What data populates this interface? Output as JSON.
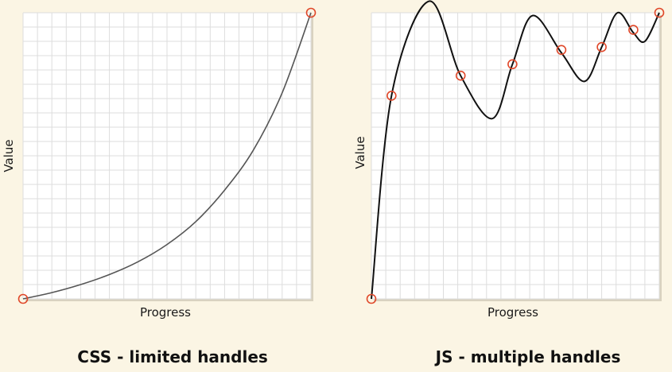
{
  "panels": [
    {
      "xlabel": "Progress",
      "ylabel": "Value",
      "caption": "CSS - limited handles"
    },
    {
      "xlabel": "Progress",
      "ylabel": "Value",
      "caption": "JS - multiple handles"
    }
  ],
  "colors": {
    "background": "#fbf5e4",
    "grid_bg": "#ffffff",
    "grid_line": "#dddddd",
    "curve": "#111111",
    "handle": "#e0482a"
  },
  "chart_data": [
    {
      "type": "line",
      "xlabel": "Progress",
      "ylabel": "Value",
      "xlim": [
        0,
        1
      ],
      "ylim": [
        0,
        1
      ],
      "grid": true,
      "curve": [
        [
          0,
          0
        ],
        [
          0.1,
          0.022
        ],
        [
          0.2,
          0.05
        ],
        [
          0.3,
          0.085
        ],
        [
          0.4,
          0.13
        ],
        [
          0.5,
          0.19
        ],
        [
          0.6,
          0.27
        ],
        [
          0.7,
          0.38
        ],
        [
          0.8,
          0.52
        ],
        [
          0.9,
          0.72
        ],
        [
          1,
          1
        ]
      ],
      "handles": [
        [
          0,
          0
        ],
        [
          1,
          1
        ]
      ]
    },
    {
      "type": "line",
      "xlabel": "Progress",
      "ylabel": "Value",
      "xlim": [
        0,
        1
      ],
      "ylim": [
        0,
        1
      ],
      "grid": true,
      "curve": [
        [
          0,
          0
        ],
        [
          0.07,
          0.71
        ],
        [
          0.2,
          1.04
        ],
        [
          0.31,
          0.78
        ],
        [
          0.42,
          0.63
        ],
        [
          0.49,
          0.82
        ],
        [
          0.56,
          0.99
        ],
        [
          0.66,
          0.86
        ],
        [
          0.74,
          0.76
        ],
        [
          0.8,
          0.88
        ],
        [
          0.855,
          1.0
        ],
        [
          0.91,
          0.93
        ],
        [
          0.95,
          0.9
        ],
        [
          1,
          1
        ]
      ],
      "handles": [
        [
          0,
          0
        ],
        [
          0.07,
          0.71
        ],
        [
          0.31,
          0.78
        ],
        [
          0.49,
          0.82
        ],
        [
          0.66,
          0.87
        ],
        [
          0.8,
          0.88
        ],
        [
          0.91,
          0.94
        ],
        [
          1,
          1
        ]
      ]
    }
  ]
}
